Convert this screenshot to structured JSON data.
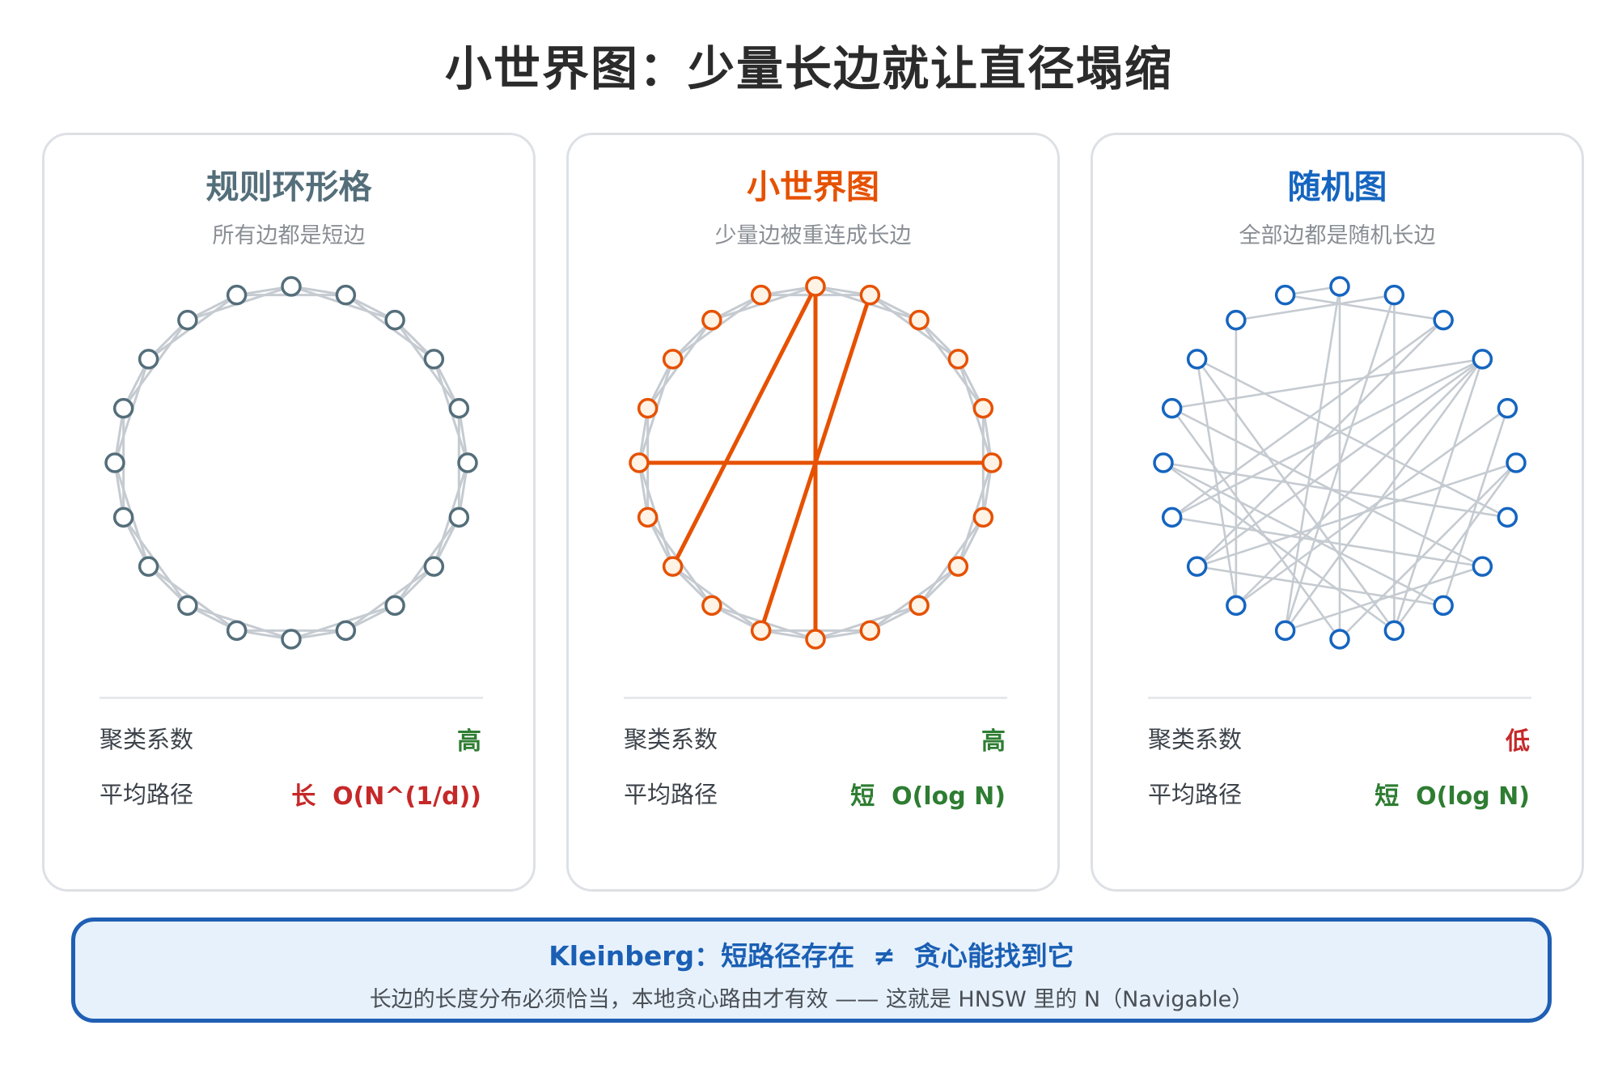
{
  "title": "小世界图：少量长边就让直径塌缩",
  "colors": {
    "regular": "#546e7a",
    "smallworld": "#e65100",
    "random": "#1565c0",
    "edge": "#c5cbd1",
    "good": "#2e7d32",
    "bad": "#c62828"
  },
  "node_count": 20,
  "panels": [
    {
      "title": "规则环形格",
      "subtitle": "所有边都是短边",
      "clustering_label": "聚类系数",
      "clustering_value": "高",
      "path_label": "平均路径",
      "path_value": "长  O(N^(1/d))",
      "graph": {
        "kind": "ring",
        "ring_neighbors": 2,
        "long_edges": [],
        "random_edges": []
      }
    },
    {
      "title": "小世界图",
      "subtitle": "少量边被重连成长边",
      "clustering_label": "聚类系数",
      "clustering_value": "高",
      "path_label": "平均路径",
      "path_value": "短  O(log N)",
      "graph": {
        "kind": "smallworld",
        "ring_neighbors": 2,
        "long_edges": [
          [
            1,
            11
          ],
          [
            5,
            15
          ],
          [
            10,
            0
          ],
          [
            0,
            13
          ]
        ],
        "random_edges": []
      }
    },
    {
      "title": "随机图",
      "subtitle": "全部边都是随机长边",
      "clustering_label": "聚类系数",
      "clustering_value": "低",
      "path_label": "平均路径",
      "path_value": "短  O(log N)",
      "graph": {
        "kind": "random",
        "ring_neighbors": 0,
        "long_edges": [],
        "random_edges": [
          [
            18,
            1
          ],
          [
            19,
            0
          ],
          [
            19,
            2
          ],
          [
            3,
            16
          ],
          [
            3,
            14
          ],
          [
            3,
            13
          ],
          [
            3,
            12
          ],
          [
            3,
            9
          ],
          [
            3,
            11
          ],
          [
            4,
            12
          ],
          [
            4,
            8
          ],
          [
            5,
            13
          ],
          [
            5,
            9
          ],
          [
            5,
            10
          ],
          [
            1,
            11
          ],
          [
            1,
            9
          ],
          [
            0,
            11
          ],
          [
            0,
            10
          ],
          [
            7,
            16
          ],
          [
            7,
            11
          ],
          [
            8,
            15
          ],
          [
            9,
            17
          ],
          [
            10,
            16
          ],
          [
            12,
            17
          ],
          [
            12,
            18
          ],
          [
            2,
            14
          ],
          [
            2,
            13
          ],
          [
            6,
            15
          ],
          [
            8,
            13
          ],
          [
            9,
            15
          ],
          [
            7,
            14
          ],
          [
            6,
            17
          ]
        ]
      }
    }
  ],
  "callout": {
    "title": "Kleinberg：短路径存在  ≠  贪心能找到它",
    "body": "长边的长度分布必须恰当，本地贪心路由才有效 —— 这就是 HNSW 里的 N（Navigable）"
  }
}
